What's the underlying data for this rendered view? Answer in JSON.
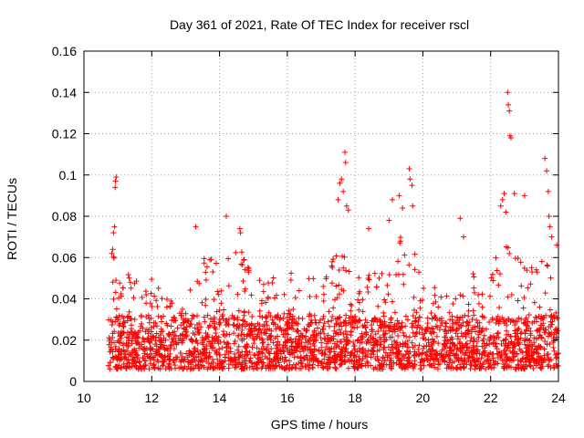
{
  "chart_data": {
    "type": "scatter",
    "title": "Day 361 of 2021, Rate Of TEC Index for receiver rscl",
    "xlabel": "GPS time / hours",
    "ylabel": "ROTI / TECUs",
    "xlim": [
      10,
      24
    ],
    "ylim": [
      0,
      0.16
    ],
    "xticks": [
      10,
      12,
      14,
      16,
      18,
      20,
      22,
      24
    ],
    "yticks": [
      0,
      0.02,
      0.04,
      0.06,
      0.08,
      0.1,
      0.12,
      0.14,
      0.16
    ],
    "xtick_labels": [
      "10",
      "12",
      "14",
      "16",
      "18",
      "20",
      "22",
      "24"
    ],
    "ytick_labels": [
      "0",
      "0.02",
      "0.04",
      "0.06",
      "0.08",
      "0.1",
      "0.12",
      "0.14",
      "0.16"
    ],
    "grid": true,
    "marker": "+",
    "series_color": "#ff0000",
    "data_start_x": 10.72,
    "envelope": [
      [
        10.7,
        0.035
      ],
      [
        10.9,
        0.065
      ],
      [
        11.0,
        0.05
      ],
      [
        11.2,
        0.055
      ],
      [
        11.5,
        0.05
      ],
      [
        12.0,
        0.05
      ],
      [
        12.5,
        0.04
      ],
      [
        13.0,
        0.04
      ],
      [
        13.3,
        0.06
      ],
      [
        13.7,
        0.065
      ],
      [
        14.0,
        0.06
      ],
      [
        14.3,
        0.06
      ],
      [
        14.6,
        0.07
      ],
      [
        15.0,
        0.05
      ],
      [
        15.5,
        0.05
      ],
      [
        16.0,
        0.055
      ],
      [
        16.3,
        0.05
      ],
      [
        16.7,
        0.05
      ],
      [
        17.0,
        0.055
      ],
      [
        17.3,
        0.06
      ],
      [
        17.6,
        0.07
      ],
      [
        18.0,
        0.05
      ],
      [
        18.4,
        0.065
      ],
      [
        18.8,
        0.055
      ],
      [
        19.2,
        0.07
      ],
      [
        19.6,
        0.075
      ],
      [
        20.0,
        0.05
      ],
      [
        20.5,
        0.045
      ],
      [
        21.0,
        0.05
      ],
      [
        21.3,
        0.06
      ],
      [
        21.7,
        0.05
      ],
      [
        22.0,
        0.05
      ],
      [
        22.3,
        0.07
      ],
      [
        22.6,
        0.065
      ],
      [
        23.0,
        0.055
      ],
      [
        23.5,
        0.06
      ],
      [
        23.8,
        0.065
      ],
      [
        24.0,
        0.06
      ]
    ],
    "spikes": [
      [
        10.82,
        0.062
      ],
      [
        10.85,
        0.064
      ],
      [
        10.87,
        0.072
      ],
      [
        10.9,
        0.075
      ],
      [
        10.92,
        0.094
      ],
      [
        10.93,
        0.097
      ],
      [
        10.95,
        0.099
      ],
      [
        13.3,
        0.075
      ],
      [
        14.2,
        0.08
      ],
      [
        14.6,
        0.074
      ],
      [
        14.62,
        0.072
      ],
      [
        17.5,
        0.088
      ],
      [
        17.55,
        0.096
      ],
      [
        17.6,
        0.098
      ],
      [
        17.65,
        0.092
      ],
      [
        17.7,
        0.111
      ],
      [
        17.72,
        0.106
      ],
      [
        17.75,
        0.085
      ],
      [
        17.8,
        0.083
      ],
      [
        18.4,
        0.074
      ],
      [
        19.0,
        0.078
      ],
      [
        19.1,
        0.088
      ],
      [
        19.3,
        0.09
      ],
      [
        19.4,
        0.084
      ],
      [
        19.6,
        0.103
      ],
      [
        19.62,
        0.098
      ],
      [
        19.68,
        0.095
      ],
      [
        19.7,
        0.085
      ],
      [
        21.1,
        0.079
      ],
      [
        21.2,
        0.07
      ],
      [
        22.3,
        0.085
      ],
      [
        22.35,
        0.088
      ],
      [
        22.4,
        0.091
      ],
      [
        22.45,
        0.082
      ],
      [
        22.5,
        0.14
      ],
      [
        22.52,
        0.134
      ],
      [
        22.55,
        0.131
      ],
      [
        22.57,
        0.119
      ],
      [
        22.6,
        0.118
      ],
      [
        22.7,
        0.091
      ],
      [
        23.0,
        0.09
      ],
      [
        23.6,
        0.108
      ],
      [
        23.65,
        0.102
      ],
      [
        23.7,
        0.092
      ],
      [
        23.72,
        0.08
      ],
      [
        23.75,
        0.075
      ],
      [
        23.8,
        0.07
      ],
      [
        23.95,
        0.066
      ]
    ]
  }
}
